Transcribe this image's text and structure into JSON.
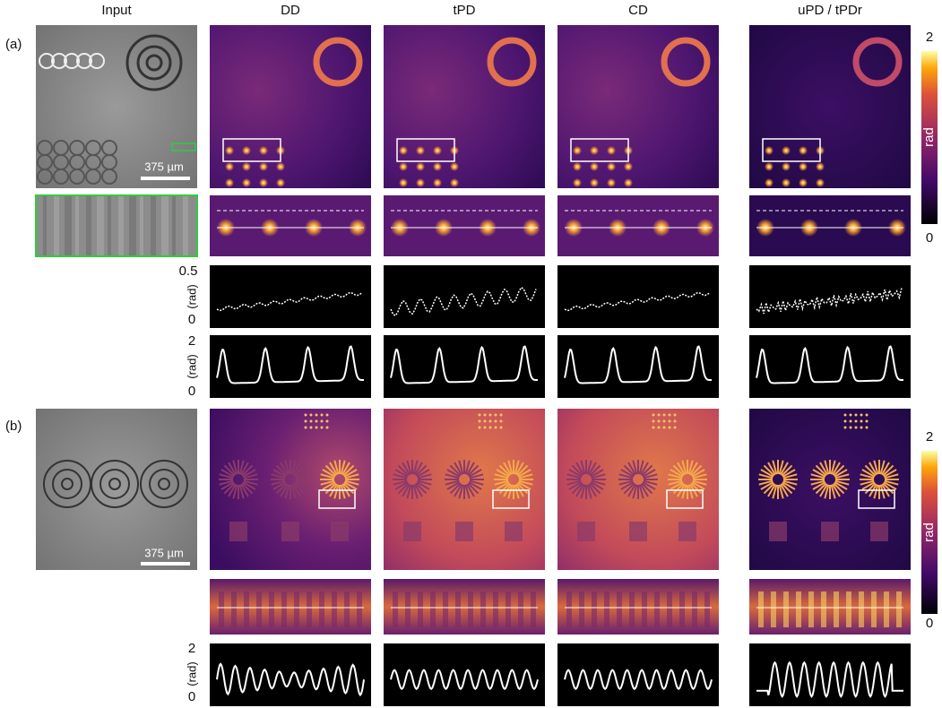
{
  "header": {
    "columns": [
      "Input",
      "DD",
      "tPD",
      "CD",
      "uPD / tPDr"
    ]
  },
  "panels": [
    {
      "label": "(a)",
      "scale_bar": "375 µm",
      "colorbar": {
        "max": "2",
        "min": "0",
        "unit": "rad"
      },
      "profile_axes": [
        {
          "top": "0.5",
          "unit": "(rad)",
          "bottom": "0"
        },
        {
          "top": "2",
          "unit": "(rad)",
          "bottom": "0"
        }
      ]
    },
    {
      "label": "(b)",
      "scale_bar": "375 µm",
      "colorbar": {
        "max": "2",
        "min": "0",
        "unit": "rad"
      },
      "profile_axes": [
        {
          "top": "2",
          "unit": "(rad)",
          "bottom": "0"
        }
      ]
    }
  ]
}
